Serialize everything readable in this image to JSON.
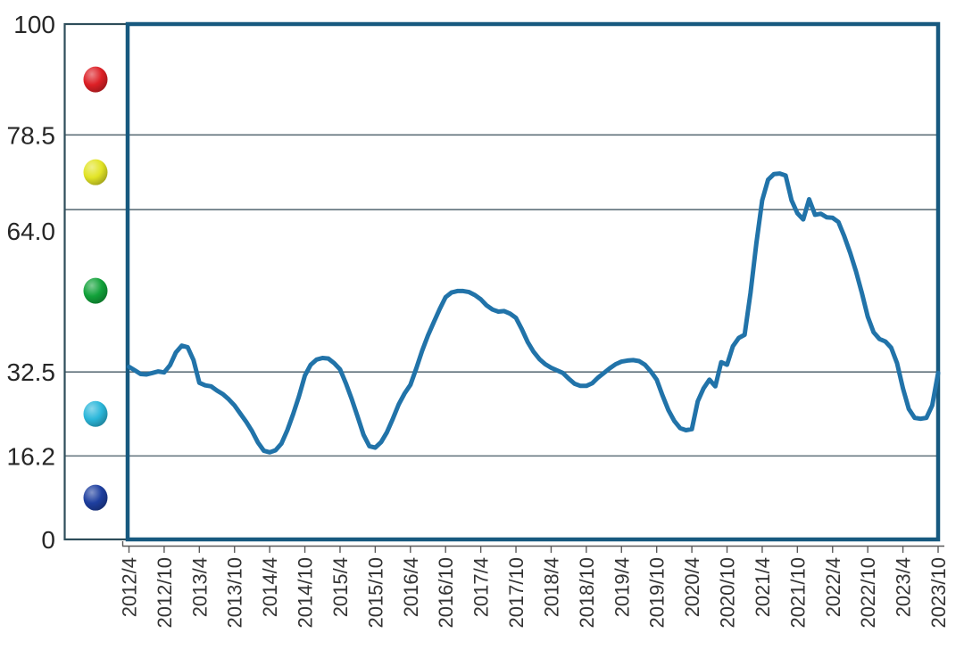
{
  "chart_data": {
    "type": "line",
    "title": "",
    "grid": true,
    "legend": false,
    "y_axis": {
      "range": [
        0,
        100
      ],
      "tick_labels": [
        "100",
        "78.5",
        "64.0",
        "32.5",
        "16.2",
        "0"
      ],
      "tick_values": [
        100,
        78.5,
        64.0,
        32.5,
        16.2,
        0
      ],
      "band_boundaries": [
        0,
        16.2,
        32.5,
        64.0,
        78.5,
        100
      ]
    },
    "x_axis": {
      "tick_labels": [
        "2012/4",
        "2012/10",
        "2013/4",
        "2013/10",
        "2014/4",
        "2014/10",
        "2015/4",
        "2015/10",
        "2016/4",
        "2016/10",
        "2017/4",
        "2017/10",
        "2018/4",
        "2018/10",
        "2019/4",
        "2019/10",
        "2020/4",
        "2020/10",
        "2021/4",
        "2021/10",
        "2022/4",
        "2022/10",
        "2023/4",
        "2023/10"
      ],
      "start": "2012/4",
      "end": "2023/10",
      "frequency": "monthly"
    },
    "series": [
      {
        "color": "#2173a9",
        "values": [
          33.5,
          32.8,
          32.1,
          32.0,
          32.3,
          32.6,
          32.4,
          33.8,
          36.3,
          37.6,
          37.3,
          34.8,
          30.4,
          29.9,
          29.7,
          28.9,
          28.2,
          27.2,
          26.0,
          24.4,
          22.8,
          21.0,
          18.8,
          17.2,
          16.9,
          17.3,
          18.6,
          21.2,
          24.3,
          27.8,
          31.8,
          33.9,
          34.9,
          35.2,
          35.1,
          34.2,
          33.0,
          30.3,
          27.2,
          23.8,
          20.3,
          18.1,
          17.8,
          18.9,
          20.8,
          23.4,
          26.2,
          28.3,
          30.0,
          33.2,
          36.6,
          39.6,
          42.2,
          44.7,
          47.0,
          47.9,
          48.2,
          48.2,
          48.0,
          47.4,
          46.6,
          45.4,
          44.6,
          44.2,
          44.3,
          43.8,
          43.0,
          40.8,
          38.3,
          36.4,
          35.0,
          34.0,
          33.3,
          32.8,
          32.3,
          31.2,
          30.2,
          29.8,
          29.8,
          30.3,
          31.4,
          32.3,
          33.2,
          34.0,
          34.5,
          34.7,
          34.8,
          34.6,
          33.9,
          32.6,
          31.0,
          27.9,
          25.1,
          23.0,
          21.6,
          21.2,
          21.4,
          26.8,
          29.3,
          31.0,
          29.7,
          34.4,
          33.9,
          37.5,
          39.1,
          39.7,
          47.8,
          57.5,
          65.8,
          69.8,
          70.9,
          71.0,
          70.6,
          65.8,
          63.3,
          62.1,
          66.0,
          63.0,
          63.2,
          62.5,
          62.4,
          61.6,
          58.8,
          55.6,
          52.0,
          47.8,
          43.2,
          40.2,
          38.9,
          38.4,
          37.2,
          34.2,
          29.3,
          25.3,
          23.6,
          23.4,
          23.6,
          26.0,
          32.3
        ]
      }
    ],
    "signal_lights": [
      {
        "name": "red-light",
        "color": "#dd2026",
        "band": [
          78.5,
          100
        ]
      },
      {
        "name": "yellow-light",
        "color": "#e2e426",
        "band": [
          64.0,
          78.5
        ]
      },
      {
        "name": "green-light",
        "color": "#12a23a",
        "band": [
          32.5,
          64.0
        ]
      },
      {
        "name": "light-blue-light",
        "color": "#2bb7da",
        "band": [
          16.2,
          32.5
        ]
      },
      {
        "name": "blue-light",
        "color": "#1e3f9f",
        "band": [
          0,
          16.2
        ]
      }
    ],
    "colors": {
      "line": "#2173a9",
      "plot_border": "#17597f",
      "panel_border": "#2e4d5a",
      "gridline": "#5f707a",
      "axis": "#595959",
      "y_label": "#262626",
      "x_label": "#333333",
      "background": "#ffffff"
    }
  }
}
